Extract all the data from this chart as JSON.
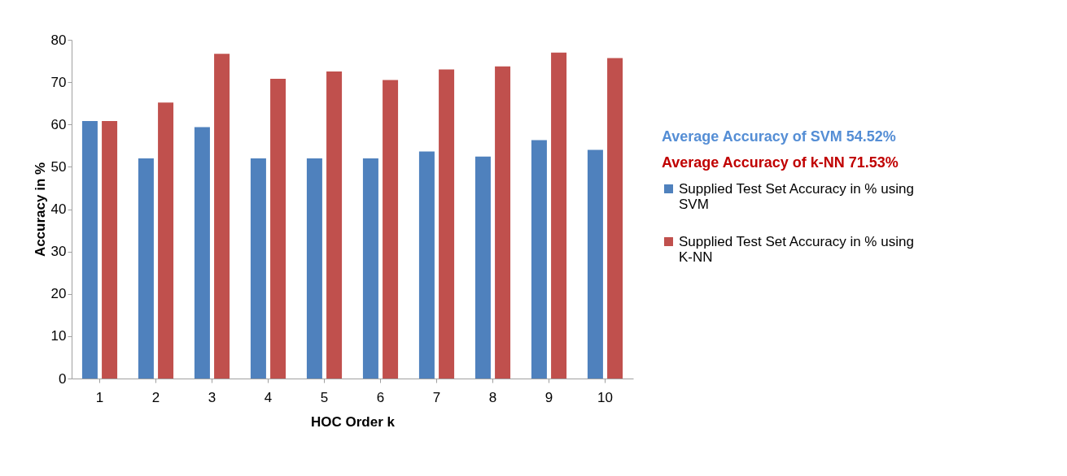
{
  "chart_data": {
    "type": "bar",
    "xlabel": "HOC Order k",
    "ylabel": "Accuracy in %",
    "categories": [
      "1",
      "2",
      "3",
      "4",
      "5",
      "6",
      "7",
      "8",
      "9",
      "10"
    ],
    "series": [
      {
        "name": "Supplied Test Set Accuracy in % using SVM",
        "color": "#4f81bd",
        "values": [
          60.8,
          52,
          59.4,
          52,
          52,
          52,
          53.6,
          52.4,
          56.3,
          54
        ]
      },
      {
        "name": "Supplied Test Set Accuracy in % using K-NN",
        "color": "#c0504d",
        "values": [
          60.8,
          65.2,
          76.7,
          70.8,
          72.5,
          70.5,
          73,
          73.7,
          77,
          75.7
        ]
      }
    ],
    "annotations": [
      "Average Accuracy of SVM 54.52%",
      "Average Accuracy of k-NN 71.53%"
    ],
    "ylim": [
      0,
      80
    ],
    "yticks": [
      0,
      10,
      20,
      30,
      40,
      50,
      60,
      70,
      80
    ],
    "grid": false,
    "legend": "right"
  }
}
